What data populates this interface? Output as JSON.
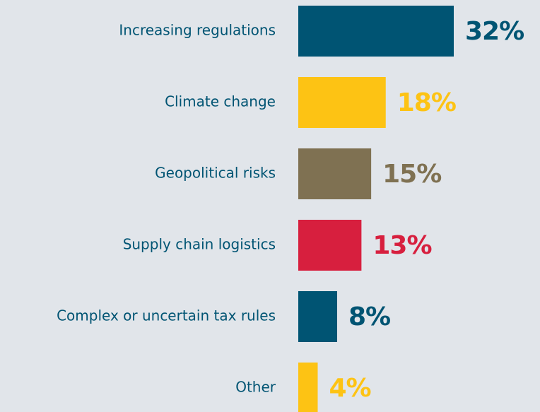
{
  "chart_data": {
    "type": "hbar",
    "categories": [
      "Increasing regulations",
      "Climate change",
      "Geopolitical risks",
      "Supply chain logistics",
      "Complex or uncertain tax rules",
      "Other"
    ],
    "values": [
      32,
      18,
      15,
      13,
      8,
      4
    ],
    "value_labels": [
      "32%",
      "18%",
      "15%",
      "13%",
      "8%",
      "4%"
    ],
    "colors": [
      "#005473",
      "#fdc314",
      "#7f7152",
      "#d71f3e",
      "#005473",
      "#fdc314"
    ],
    "label_color": "#005473"
  }
}
